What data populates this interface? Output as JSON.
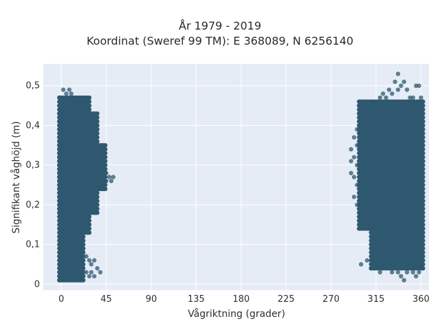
{
  "chart_data": {
    "type": "scatter",
    "title": "År 1979 - 2019",
    "subtitle": "Koordinat (Sweref 99 TM): E 368089, N 6256140",
    "xlabel": "Vågriktning (grader)",
    "ylabel": "Signifikant våghöjd (m)",
    "xlim": [
      -18,
      368
    ],
    "ylim": [
      -0.015,
      0.555
    ],
    "x_ticks": [
      0,
      45,
      90,
      135,
      180,
      225,
      270,
      315,
      360
    ],
    "x_tick_labels": [
      "0",
      "45",
      "90",
      "135",
      "180",
      "225",
      "270",
      "315",
      "360"
    ],
    "y_ticks": [
      0,
      0.1,
      0.2,
      0.3,
      0.4,
      0.5
    ],
    "y_tick_labels": [
      "0",
      "0,1",
      "0,2",
      "0,3",
      "0,4",
      "0,5"
    ],
    "grid": true,
    "legend": "none",
    "marker_color": "#2e5870",
    "plot_bg": "#e5ecf6",
    "points": [
      [
        0,
        0.01
      ],
      [
        0,
        0.05
      ],
      [
        0,
        0.12
      ],
      [
        0,
        0.2
      ],
      [
        0,
        0.3
      ],
      [
        0,
        0.4
      ],
      [
        0,
        0.47
      ],
      [
        2,
        0.03
      ],
      [
        2,
        0.09
      ],
      [
        2,
        0.15
      ],
      [
        2,
        0.25
      ],
      [
        2,
        0.35
      ],
      [
        2,
        0.45
      ],
      [
        2,
        0.49
      ],
      [
        5,
        0.02
      ],
      [
        5,
        0.08
      ],
      [
        5,
        0.18
      ],
      [
        5,
        0.28
      ],
      [
        5,
        0.38
      ],
      [
        5,
        0.48
      ],
      [
        8,
        0.03
      ],
      [
        8,
        0.07
      ],
      [
        8,
        0.13
      ],
      [
        8,
        0.22
      ],
      [
        8,
        0.32
      ],
      [
        8,
        0.42
      ],
      [
        8,
        0.49
      ],
      [
        10,
        0.01
      ],
      [
        10,
        0.06
      ],
      [
        10,
        0.11
      ],
      [
        10,
        0.24
      ],
      [
        10,
        0.34
      ],
      [
        10,
        0.44
      ],
      [
        10,
        0.48
      ],
      [
        12,
        0.02
      ],
      [
        12,
        0.1
      ],
      [
        12,
        0.19
      ],
      [
        12,
        0.29
      ],
      [
        12,
        0.39
      ],
      [
        12,
        0.47
      ],
      [
        15,
        0.01
      ],
      [
        15,
        0.05
      ],
      [
        15,
        0.14
      ],
      [
        15,
        0.21
      ],
      [
        15,
        0.31
      ],
      [
        15,
        0.41
      ],
      [
        15,
        0.46
      ],
      [
        18,
        0.02
      ],
      [
        18,
        0.08
      ],
      [
        18,
        0.17
      ],
      [
        18,
        0.27
      ],
      [
        18,
        0.37
      ],
      [
        18,
        0.47
      ],
      [
        20,
        0.01
      ],
      [
        20,
        0.04
      ],
      [
        20,
        0.12
      ],
      [
        20,
        0.2
      ],
      [
        20,
        0.3
      ],
      [
        20,
        0.4
      ],
      [
        20,
        0.45
      ],
      [
        22,
        0.02
      ],
      [
        22,
        0.09
      ],
      [
        22,
        0.16
      ],
      [
        22,
        0.26
      ],
      [
        22,
        0.36
      ],
      [
        22,
        0.46
      ],
      [
        25,
        0.03
      ],
      [
        25,
        0.07
      ],
      [
        25,
        0.18
      ],
      [
        25,
        0.28
      ],
      [
        25,
        0.38
      ],
      [
        25,
        0.45
      ],
      [
        28,
        0.02
      ],
      [
        28,
        0.06
      ],
      [
        28,
        0.15
      ],
      [
        28,
        0.25
      ],
      [
        28,
        0.35
      ],
      [
        28,
        0.44
      ],
      [
        30,
        0.03
      ],
      [
        30,
        0.05
      ],
      [
        30,
        0.18
      ],
      [
        30,
        0.23
      ],
      [
        30,
        0.33
      ],
      [
        30,
        0.42
      ],
      [
        33,
        0.02
      ],
      [
        33,
        0.06
      ],
      [
        33,
        0.19
      ],
      [
        33,
        0.27
      ],
      [
        33,
        0.37
      ],
      [
        33,
        0.41
      ],
      [
        36,
        0.04
      ],
      [
        36,
        0.24
      ],
      [
        36,
        0.31
      ],
      [
        36,
        0.39
      ],
      [
        39,
        0.03
      ],
      [
        39,
        0.25
      ],
      [
        39,
        0.29
      ],
      [
        39,
        0.34
      ],
      [
        42,
        0.3
      ],
      [
        42,
        0.27
      ],
      [
        45,
        0.26
      ],
      [
        45,
        0.28
      ],
      [
        48,
        0.27
      ],
      [
        50,
        0.26
      ],
      [
        52,
        0.27
      ],
      [
        290,
        0.28
      ],
      [
        290,
        0.31
      ],
      [
        290,
        0.34
      ],
      [
        293,
        0.22
      ],
      [
        293,
        0.27
      ],
      [
        293,
        0.32
      ],
      [
        293,
        0.37
      ],
      [
        296,
        0.2
      ],
      [
        296,
        0.25
      ],
      [
        296,
        0.3
      ],
      [
        296,
        0.35
      ],
      [
        296,
        0.39
      ],
      [
        300,
        0.18
      ],
      [
        300,
        0.23
      ],
      [
        300,
        0.28
      ],
      [
        300,
        0.33
      ],
      [
        300,
        0.38
      ],
      [
        300,
        0.41
      ],
      [
        300,
        0.05
      ],
      [
        303,
        0.17
      ],
      [
        303,
        0.22
      ],
      [
        303,
        0.32
      ],
      [
        303,
        0.42
      ],
      [
        306,
        0.15
      ],
      [
        306,
        0.2
      ],
      [
        306,
        0.27
      ],
      [
        306,
        0.34
      ],
      [
        306,
        0.43
      ],
      [
        306,
        0.06
      ],
      [
        310,
        0.14
      ],
      [
        310,
        0.19
      ],
      [
        310,
        0.26
      ],
      [
        310,
        0.36
      ],
      [
        310,
        0.44
      ],
      [
        310,
        0.04
      ],
      [
        313,
        0.13
      ],
      [
        313,
        0.21
      ],
      [
        313,
        0.31
      ],
      [
        313,
        0.41
      ],
      [
        313,
        0.45
      ],
      [
        316,
        0.12
      ],
      [
        316,
        0.18
      ],
      [
        316,
        0.28
      ],
      [
        316,
        0.38
      ],
      [
        316,
        0.46
      ],
      [
        316,
        0.05
      ],
      [
        319,
        0.13
      ],
      [
        319,
        0.23
      ],
      [
        319,
        0.33
      ],
      [
        319,
        0.43
      ],
      [
        319,
        0.47
      ],
      [
        319,
        0.03
      ],
      [
        322,
        0.12
      ],
      [
        322,
        0.19
      ],
      [
        322,
        0.29
      ],
      [
        322,
        0.39
      ],
      [
        322,
        0.48
      ],
      [
        322,
        0.04
      ],
      [
        325,
        0.08
      ],
      [
        325,
        0.14
      ],
      [
        325,
        0.24
      ],
      [
        325,
        0.34
      ],
      [
        325,
        0.44
      ],
      [
        325,
        0.47
      ],
      [
        328,
        0.05
      ],
      [
        328,
        0.11
      ],
      [
        328,
        0.21
      ],
      [
        328,
        0.31
      ],
      [
        328,
        0.41
      ],
      [
        328,
        0.49
      ],
      [
        331,
        0.03
      ],
      [
        331,
        0.09
      ],
      [
        331,
        0.17
      ],
      [
        331,
        0.27
      ],
      [
        331,
        0.37
      ],
      [
        331,
        0.48
      ],
      [
        334,
        0.04
      ],
      [
        334,
        0.12
      ],
      [
        334,
        0.22
      ],
      [
        334,
        0.32
      ],
      [
        334,
        0.42
      ],
      [
        334,
        0.51
      ],
      [
        337,
        0.03
      ],
      [
        337,
        0.08
      ],
      [
        337,
        0.18
      ],
      [
        337,
        0.28
      ],
      [
        337,
        0.38
      ],
      [
        337,
        0.49
      ],
      [
        337,
        0.53
      ],
      [
        340,
        0.02
      ],
      [
        340,
        0.07
      ],
      [
        340,
        0.15
      ],
      [
        340,
        0.25
      ],
      [
        340,
        0.35
      ],
      [
        340,
        0.45
      ],
      [
        340,
        0.5
      ],
      [
        343,
        0.01
      ],
      [
        343,
        0.06
      ],
      [
        343,
        0.12
      ],
      [
        343,
        0.22
      ],
      [
        343,
        0.32
      ],
      [
        343,
        0.42
      ],
      [
        343,
        0.51
      ],
      [
        346,
        0.03
      ],
      [
        346,
        0.09
      ],
      [
        346,
        0.19
      ],
      [
        346,
        0.29
      ],
      [
        346,
        0.39
      ],
      [
        346,
        0.49
      ],
      [
        349,
        0.04
      ],
      [
        349,
        0.11
      ],
      [
        349,
        0.21
      ],
      [
        349,
        0.31
      ],
      [
        349,
        0.41
      ],
      [
        349,
        0.47
      ],
      [
        352,
        0.03
      ],
      [
        352,
        0.08
      ],
      [
        352,
        0.17
      ],
      [
        352,
        0.27
      ],
      [
        352,
        0.37
      ],
      [
        352,
        0.47
      ],
      [
        355,
        0.02
      ],
      [
        355,
        0.06
      ],
      [
        355,
        0.13
      ],
      [
        355,
        0.23
      ],
      [
        355,
        0.33
      ],
      [
        355,
        0.43
      ],
      [
        355,
        0.5
      ],
      [
        358,
        0.03
      ],
      [
        358,
        0.08
      ],
      [
        358,
        0.16
      ],
      [
        358,
        0.26
      ],
      [
        358,
        0.36
      ],
      [
        358,
        0.46
      ],
      [
        358,
        0.5
      ],
      [
        360,
        0.05
      ],
      [
        360,
        0.12
      ],
      [
        360,
        0.2
      ],
      [
        360,
        0.3
      ],
      [
        360,
        0.4
      ],
      [
        360,
        0.47
      ]
    ],
    "dense_regions": [
      {
        "x_range": [
          -2,
          28
        ],
        "y_range": [
          0.13,
          0.47
        ]
      },
      {
        "x_range": [
          -2,
          36
        ],
        "y_range": [
          0.18,
          0.43
        ]
      },
      {
        "x_range": [
          -2,
          45
        ],
        "y_range": [
          0.24,
          0.35
        ]
      },
      {
        "x_range": [
          -2,
          22
        ],
        "y_range": [
          0.01,
          0.12
        ]
      },
      {
        "x_range": [
          298,
          362
        ],
        "y_range": [
          0.14,
          0.46
        ]
      },
      {
        "x_range": [
          310,
          362
        ],
        "y_range": [
          0.04,
          0.14
        ]
      }
    ]
  }
}
